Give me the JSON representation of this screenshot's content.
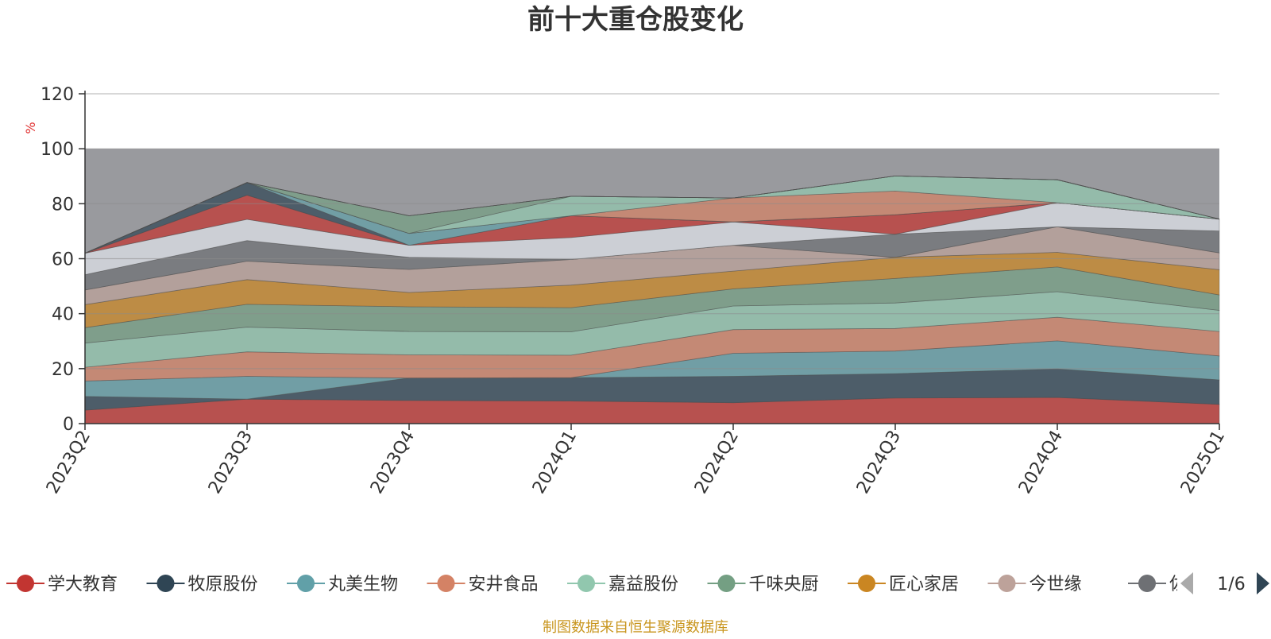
{
  "chart_data": {
    "type": "area",
    "title": "前十大重仓股变化",
    "ylabel": "%",
    "ylim": [
      0,
      120
    ],
    "yticks": [
      0,
      20,
      40,
      60,
      80,
      100,
      120
    ],
    "x": [
      "2023Q2",
      "2023Q3",
      "2023Q4",
      "2024Q1",
      "2024Q2",
      "2024Q3",
      "2024Q4",
      "2025Q1"
    ],
    "grid": true,
    "stacked": true,
    "background_band": {
      "from": 0,
      "to": 100,
      "color": "#999a9e"
    },
    "series": [
      {
        "name": "学大教育",
        "color": "#c23531",
        "values": [
          0,
          0,
          0,
          8.2,
          7.6,
          0,
          0,
          0
        ]
      },
      {
        "name": "牧原股份",
        "color": "#2f4554",
        "values": [
          0,
          0,
          0,
          0,
          7.4,
          9.3,
          0,
          0
        ]
      },
      {
        "name": "丸美生物",
        "color": "#61a0a8",
        "values": [
          0,
          0,
          0,
          0,
          0,
          0,
          9.5,
          7.0
        ]
      },
      {
        "name": "安井食品",
        "color": "#d48265",
        "values": [
          5.0,
          0,
          0,
          0,
          0,
          0,
          0,
          0
        ]
      },
      {
        "name": "嘉益股份",
        "color": "#91c7ae",
        "values": [
          5.0,
          9.0,
          8.5,
          8.5,
          9.6,
          8.9,
          10.4,
          8.9
        ]
      },
      {
        "name": "千味央厨",
        "color": "#749f83",
        "values": [
          5.6,
          0,
          0,
          0,
          0,
          0,
          0,
          0
        ]
      },
      {
        "name": "匠心家居",
        "color": "#ca8622",
        "values": [
          0,
          0,
          0,
          0,
          8.4,
          8.2,
          10.2,
          8.7
        ]
      },
      {
        "name": "今世缘",
        "color": "#bda29a",
        "values": [
          0,
          8.3,
          0,
          0,
          0,
          0,
          0,
          0
        ]
      },
      {
        "name": "佐力药业",
        "color": "#6e7074",
        "values": [
          5.0,
          0,
          8.2,
          8.5,
          0,
          0,
          0,
          0
        ]
      }
    ]
  },
  "legend": {
    "items": [
      {
        "name": "学大教育",
        "color": "#c23531"
      },
      {
        "name": "牧原股份",
        "color": "#2f4554"
      },
      {
        "name": "丸美生物",
        "color": "#61a0a8"
      },
      {
        "name": "安井食品",
        "color": "#d48265"
      },
      {
        "name": "嘉益股份",
        "color": "#91c7ae"
      },
      {
        "name": "千味央厨",
        "color": "#749f83"
      },
      {
        "name": "匠心家居",
        "color": "#ca8622"
      },
      {
        "name": "今世缘",
        "color": "#bda29a"
      },
      {
        "name": "佐",
        "color": "#6e7074"
      }
    ],
    "page_indicator": "1/6"
  },
  "footer": {
    "source_text": "制图数据来自恒生聚源数据库",
    "color": "#c9961f"
  },
  "decor_layers": {
    "colors": [
      "#c23531",
      "#2f4554",
      "#61a0a8",
      "#d48265",
      "#91c7ae",
      "#749f83",
      "#ca8622",
      "#bda29a",
      "#6e7074",
      "#dfe3ea",
      "#c23531",
      "#2f4554",
      "#61a0a8",
      "#d48265",
      "#91c7ae",
      "#749f83",
      "#ca8622",
      "#bda29a",
      "#6e7074",
      "#dfe3ea"
    ],
    "values": [
      [
        4.9,
        8.9,
        8.4,
        8.2,
        7.6,
        9.3,
        9.5,
        7.0
      ],
      [
        5.0,
        0,
        8.2,
        8.5,
        9.6,
        8.9,
        10.4,
        8.9
      ],
      [
        5.6,
        8.3,
        0,
        0,
        8.4,
        8.2,
        10.2,
        8.7
      ],
      [
        5.0,
        8.9,
        8.4,
        8.2,
        8.6,
        8.2,
        8.6,
        8.9
      ],
      [
        8.8,
        9.0,
        8.5,
        8.5,
        8.6,
        9.3,
        9.3,
        7.7
      ],
      [
        5.6,
        8.3,
        9.0,
        8.8,
        6.2,
        8.9,
        9.0,
        5.6
      ],
      [
        8.4,
        9.0,
        5.2,
        8.2,
        6.5,
        7.7,
        5.3,
        9.2
      ],
      [
        5.3,
        6.7,
        8.4,
        9.3,
        9.4,
        0,
        9.3,
        6.1
      ],
      [
        5.6,
        7.5,
        4.4,
        0,
        0,
        8.4,
        0,
        8.0
      ],
      [
        7.8,
        7.7,
        4.4,
        8.0,
        8.5,
        0,
        8.8,
        4.3
      ],
      [
        0,
        8.8,
        0,
        7.9,
        0,
        7.1,
        0,
        0
      ],
      [
        0,
        4.6,
        0,
        0,
        0,
        0,
        0,
        0
      ],
      [
        0,
        0,
        4.3,
        0,
        0,
        0,
        0,
        0
      ],
      [
        0,
        0,
        0,
        0,
        8.7,
        8.6,
        0,
        0
      ],
      [
        0,
        0,
        0,
        7.1,
        0,
        5.5,
        8.3,
        0
      ],
      [
        0,
        0,
        6.4,
        0,
        0,
        0,
        0,
        0
      ],
      [
        0,
        0,
        0,
        0,
        0,
        0,
        0,
        0
      ],
      [
        0,
        0,
        0,
        0,
        0,
        0,
        0,
        0
      ],
      [
        0,
        0,
        0,
        0,
        0,
        0,
        0,
        0
      ],
      [
        0,
        0,
        0,
        0,
        0,
        0,
        0,
        0
      ]
    ]
  }
}
